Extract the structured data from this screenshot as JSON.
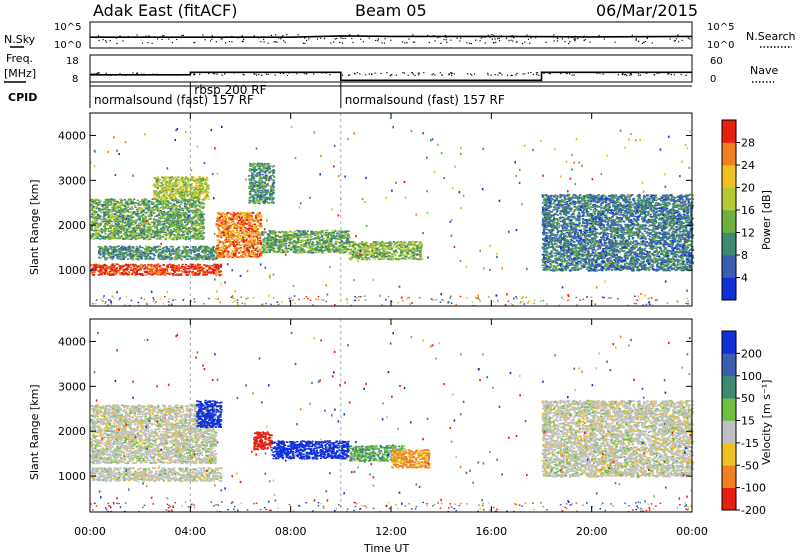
{
  "header": {
    "radar": "Adak East (fitACF)",
    "beam": "Beam 05",
    "date": "06/Mar/2015"
  },
  "noise_panel": {
    "left_label": "N.Sky",
    "right_label": "N.Search",
    "left_ticks": [
      "10^5",
      "10^0"
    ],
    "right_ticks": [
      "10^5",
      "10^0"
    ]
  },
  "freq_panel": {
    "left_label_1": "Freq.",
    "left_label_2": "[MHz]",
    "right_label": "Nave",
    "left_ticks": [
      "18",
      "8"
    ],
    "right_ticks": [
      "60",
      "0"
    ]
  },
  "cpid": {
    "label": "CPID",
    "modes": [
      {
        "name": "normalsound (fast) 157 RF",
        "start_hour": 0,
        "end_hour": 4
      },
      {
        "name": "rbsp 200 RF",
        "start_hour": 4,
        "end_hour": 10
      },
      {
        "name": "normalsound (fast) 157 RF",
        "start_hour": 10,
        "end_hour": 24
      }
    ]
  },
  "x_axis": {
    "label": "Time UT",
    "ticks": [
      "00:00",
      "04:00",
      "08:00",
      "12:00",
      "16:00",
      "20:00",
      "00:00"
    ]
  },
  "power_panel": {
    "ylabel": "Slant Range [km]",
    "yticks": [
      "1000",
      "2000",
      "3000",
      "4000"
    ],
    "colorbar_label": "Power [dB]",
    "colorbar_ticks": [
      "4",
      "8",
      "12",
      "16",
      "20",
      "24",
      "28"
    ],
    "colors": [
      "#1030d8",
      "#3a5fb0",
      "#3c8a70",
      "#70b040",
      "#b8c830",
      "#f0c020",
      "#f08020",
      "#e82010"
    ]
  },
  "velocity_panel": {
    "ylabel": "Slant Range [km]",
    "yticks": [
      "1000",
      "2000",
      "3000",
      "4000"
    ],
    "colorbar_label": "Velocity [m s⁻¹]",
    "colorbar_ticks": [
      "200",
      "100",
      "50",
      "15",
      "-15",
      "-50",
      "-100",
      "-200"
    ],
    "colors": [
      "#1030d8",
      "#3a5fb0",
      "#3c8a70",
      "#70c040",
      "#c0c0c0",
      "#f0c020",
      "#f08020",
      "#e82010"
    ]
  },
  "chart_data": [
    {
      "type": "line",
      "title": "",
      "series": [
        {
          "name": "N.Sky",
          "x": [
            0,
            4,
            8,
            10,
            12,
            16,
            20,
            24
          ],
          "values": [
            100,
            100,
            100,
            200,
            150,
            150,
            120,
            150
          ]
        }
      ],
      "ylim": [
        1,
        100000
      ],
      "yscale": "log"
    },
    {
      "type": "line",
      "series": [
        {
          "name": "Freq.",
          "x": [
            0,
            4,
            4,
            10,
            10,
            18,
            18,
            24
          ],
          "values": [
            10.5,
            10.5,
            11.5,
            11.5,
            8.3,
            8.3,
            11.5,
            11.5
          ]
        }
      ],
      "ylim": [
        8,
        18
      ]
    },
    {
      "type": "heatmap",
      "title": "Power [dB]",
      "xlabel": "Time UT",
      "ylabel": "Slant Range [km]",
      "xlim": [
        0,
        24
      ],
      "ylim": [
        200,
        4500
      ],
      "colorbar_range": [
        0,
        30
      ],
      "regions": [
        {
          "t0": 0.0,
          "t1": 5.2,
          "r0": 900,
          "r1": 1150,
          "power": 28
        },
        {
          "t0": 0.3,
          "t1": 5.0,
          "r0": 1250,
          "r1": 1550,
          "power": 10
        },
        {
          "t0": 0.0,
          "t1": 4.5,
          "r0": 1700,
          "r1": 2600,
          "power": 12
        },
        {
          "t0": 2.5,
          "t1": 4.7,
          "r0": 2600,
          "r1": 3100,
          "power": 16
        },
        {
          "t0": 5.0,
          "t1": 6.8,
          "r0": 1300,
          "r1": 2300,
          "power": 24
        },
        {
          "t0": 6.3,
          "t1": 7.3,
          "r0": 2500,
          "r1": 3400,
          "power": 10
        },
        {
          "t0": 6.8,
          "t1": 10.3,
          "r0": 1400,
          "r1": 1900,
          "power": 12
        },
        {
          "t0": 10.3,
          "t1": 13.2,
          "r0": 1250,
          "r1": 1650,
          "power": 14
        },
        {
          "t0": 18.0,
          "t1": 24.0,
          "r0": 1000,
          "r1": 2700,
          "power": 8
        }
      ]
    },
    {
      "type": "heatmap",
      "title": "Velocity [m s⁻¹]",
      "xlabel": "Time UT",
      "ylabel": "Slant Range [km]",
      "xlim": [
        0,
        24
      ],
      "ylim": [
        200,
        4500
      ],
      "colorbar_range": [
        -200,
        200
      ],
      "regions": [
        {
          "t0": 0.0,
          "t1": 5.2,
          "r0": 900,
          "r1": 1200,
          "velocity": 0
        },
        {
          "t0": 0.0,
          "t1": 5.0,
          "r0": 1300,
          "r1": 2600,
          "velocity": 0
        },
        {
          "t0": 4.2,
          "t1": 5.2,
          "r0": 2100,
          "r1": 2700,
          "velocity": 200
        },
        {
          "t0": 6.5,
          "t1": 7.2,
          "r0": 1600,
          "r1": 2000,
          "velocity": -150
        },
        {
          "t0": 7.2,
          "t1": 10.3,
          "r0": 1400,
          "r1": 1800,
          "velocity": 180
        },
        {
          "t0": 10.3,
          "t1": 12.5,
          "r0": 1350,
          "r1": 1700,
          "velocity": 30
        },
        {
          "t0": 12.0,
          "t1": 13.5,
          "r0": 1200,
          "r1": 1600,
          "velocity": -40
        },
        {
          "t0": 18.0,
          "t1": 24.0,
          "r0": 1000,
          "r1": 2700,
          "velocity": 0
        }
      ]
    }
  ]
}
